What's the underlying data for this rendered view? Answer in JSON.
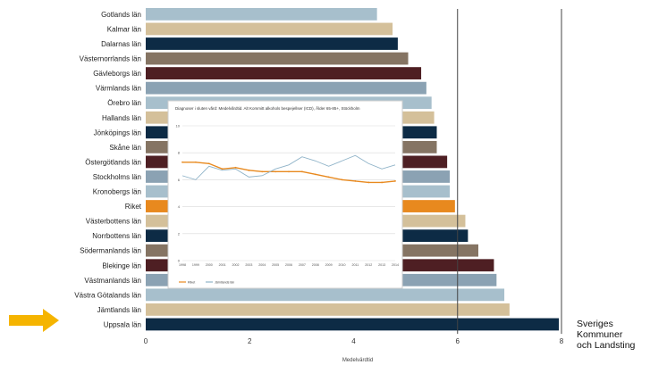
{
  "chart_data": [
    {
      "type": "bar",
      "orientation": "horizontal",
      "categories": [
        "Gotlands län",
        "Kalmar län",
        "Dalarnas län",
        "Västernorrlands län",
        "Gävleborgs län",
        "Värmlands län",
        "Örebro län",
        "Hallands län",
        "Jönköpings län",
        "Skåne län",
        "Östergötlands län",
        "Stockholms län",
        "Kronobergs län",
        "Riket",
        "Västerbottens län",
        "Norrbottens län",
        "Södermanlands län",
        "Blekinge län",
        "Västmanlands län",
        "Västra Götalands län",
        "Jämtlands län",
        "Uppsala län"
      ],
      "values": [
        4.45,
        4.75,
        4.85,
        5.05,
        5.3,
        5.4,
        5.5,
        5.55,
        5.6,
        5.6,
        5.8,
        5.85,
        5.85,
        5.95,
        6.15,
        6.2,
        6.4,
        6.7,
        6.75,
        6.9,
        7.0,
        7.95
      ],
      "colors": [
        "#a7bfcc",
        "#d4c09a",
        "#0d2b45",
        "#857463",
        "#4e1f23",
        "#8ba2b3",
        "#a7bfcc",
        "#d4c09a",
        "#0d2b45",
        "#857463",
        "#4e1f23",
        "#8ba2b3",
        "#a7bfcc",
        "#e8891e",
        "#d4c09a",
        "#0d2b45",
        "#857463",
        "#4e1f23",
        "#8ba2b3",
        "#a7bfcc",
        "#d4c09a",
        "#0d2b45"
      ],
      "highlight": "Riket",
      "xlabel": "Medelvärdtid",
      "xlim": [
        0,
        8
      ],
      "xticks": [
        0,
        2,
        4,
        6,
        8
      ],
      "reference_lines": [
        6,
        8
      ],
      "grid": false
    },
    {
      "type": "line",
      "title": "Diagnoser i sluten vård: Medelvårdtid. Alt Kommitt alkohols bespejellser (ICD), Ålder 65-85+, Stöckholm",
      "x": [
        "1998",
        "1999",
        "2000",
        "2001",
        "2002",
        "2003",
        "2004",
        "2005",
        "2006",
        "2007",
        "2008",
        "2009",
        "2010",
        "2011",
        "2012",
        "2013",
        "2014"
      ],
      "ylim": [
        0,
        10
      ],
      "yticks": [
        0,
        2,
        4,
        6,
        8,
        10
      ],
      "series": [
        {
          "name": "Riket",
          "color": "#e8891e",
          "values": [
            7.3,
            7.3,
            7.2,
            6.8,
            6.9,
            6.7,
            6.6,
            6.6,
            6.6,
            6.6,
            6.4,
            6.2,
            6.0,
            5.9,
            5.8,
            5.8,
            5.9
          ]
        },
        {
          "name": "Jämtlands län",
          "color": "#8fb3c8",
          "values": [
            6.3,
            6.0,
            7.0,
            6.7,
            6.8,
            6.2,
            6.3,
            6.8,
            7.1,
            7.7,
            7.4,
            7.0,
            7.4,
            7.8,
            7.2,
            6.8,
            7.1
          ]
        }
      ],
      "grid": true,
      "legend": "bottom-left"
    }
  ],
  "brand": {
    "line1": "Sveriges",
    "line2": "Kommuner",
    "line3": "och Landsting"
  },
  "colors": {
    "arrow": "#f5b400",
    "highlight_bar": "#e8891e"
  }
}
